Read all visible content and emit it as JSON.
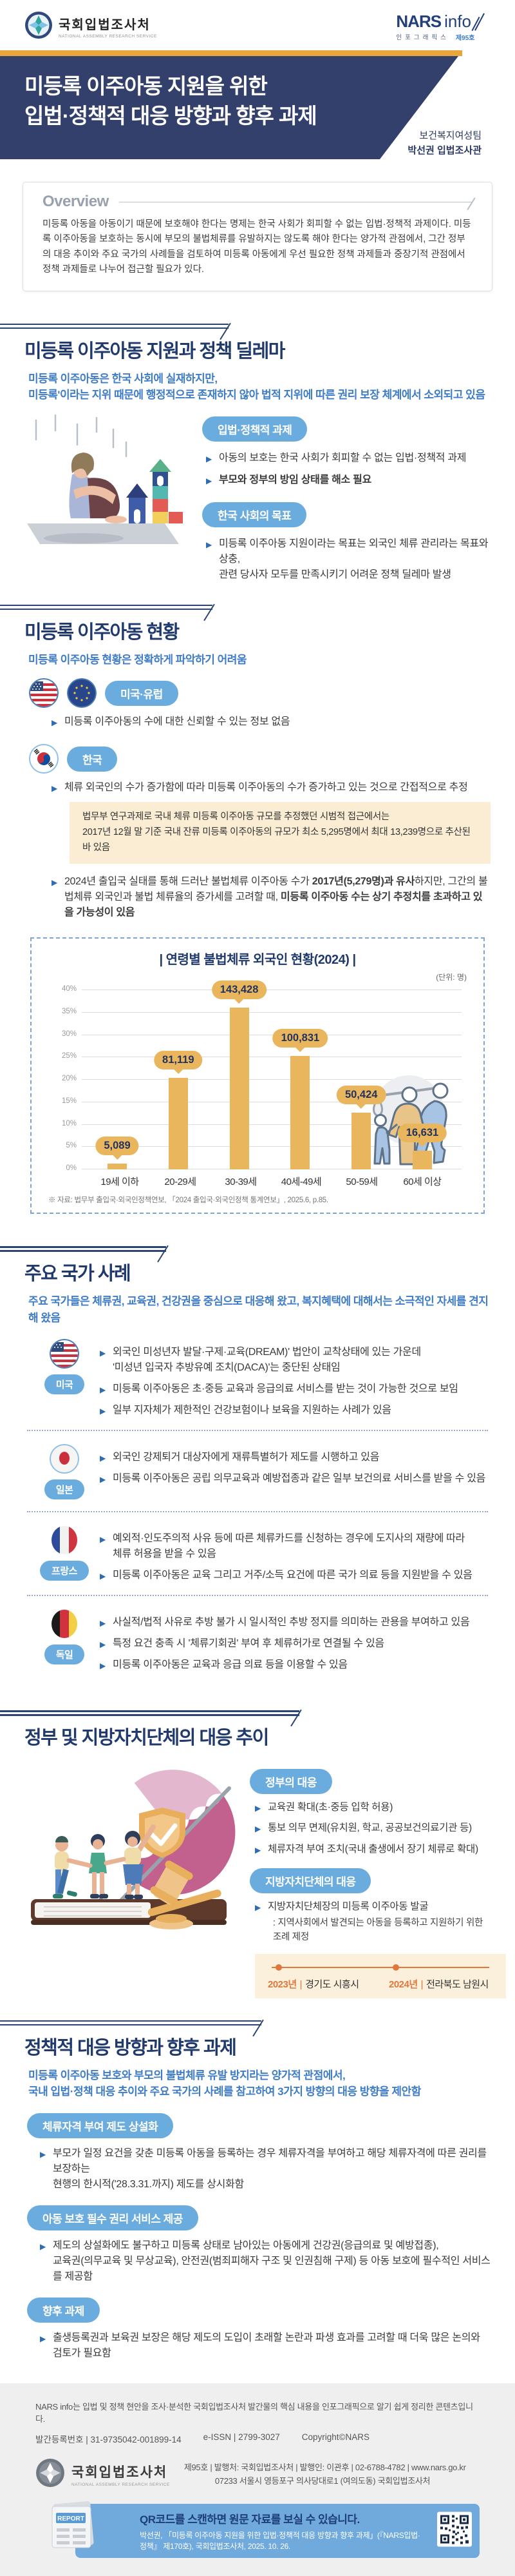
{
  "colors": {
    "navy": "#32406B",
    "heading": "#203A6E",
    "blue": "#3E7CC7",
    "pill-blue": "#6BACDF",
    "gold": "#E8A53C",
    "bar-gold": "#EAB65D",
    "orange": "#E0783C",
    "beige": "#FAEDD3",
    "timeline-beige": "#FBF0DC",
    "footer-bg": "#EFEFEF",
    "qrbar-blue": "#70A9DC",
    "bullet-blue": "#2E6CB4"
  },
  "header": {
    "org_name": "국회입법조사처",
    "org_name_en": "NATIONAL ASSEMBLY RESEARCH SERVICE",
    "brand_bold": "NARS",
    "brand_light": "info",
    "brand_sub": "인포그래픽스",
    "issue_no": "제95호",
    "title_line1": "미등록 이주아동 지원을 위한",
    "title_line2": "입법·정책적 대응 방향과 향후 과제",
    "team": "보건복지여성팀",
    "author": "박선권 입법조사관"
  },
  "overview": {
    "label": "Overview",
    "body": "미등록 아동을 아동이기 때문에 보호해야 한다는 명제는 한국 사회가 회피할 수 없는 입법·정책적 과제이다. 미등록 이주아동을 보호하는 동시에 부모의 불법체류를 유발하지는 않도록 해야 한다는 양가적 관점에서, 그간 정부의 대응 추이와 주요 국가의 사례들을 검토하여 미등록 아동에게 우선 필요한 정책 과제들과 중장기적 관점에서 정책 과제들로 나누어 접근할 필요가 있다."
  },
  "section1": {
    "heading": "미등록 이주아동 지원과 정책 딜레마",
    "intro": "미등록 이주아동은 한국 사회에 실재하지만,\n미등록'이라는 지위 때문에 행정적으로 존재하지 않아 법적 지위에 따른 권리 보장 체계에서 소외되고 있음",
    "pill1": "입법·정책적 과제",
    "pill1_bullet1": "아동의 보호는 한국 사회가 회피할 수 없는 입법·정책적 과제",
    "pill1_bullet2": "부모와 정부의 방임 상태를 해소 필요",
    "pill2": "한국 사회의 목표",
    "pill2_bullet": "미등록 이주아동 지원이라는 목표는 외국인 체류 관리라는 목표와 상충,\n관련 당사자 모두를 만족시키기 어려운 정책 딜레마 발생"
  },
  "section2": {
    "heading": "미등록 이주아동 현황",
    "intro": "미등록 이주아동 현황은 정확하게 파악하기 어려움",
    "us_eu_label": "미국·유럽",
    "us_eu_bullet": "미등록 이주아동의 수에 대한 신뢰할 수 있는 정보 없음",
    "kr_label": "한국",
    "kr_bullet1": "체류 외국인의 수가 증가함에 따라 미등록 이주아동의 수가 증가하고 있는 것으로 간접적으로 추정",
    "kr_note": "법무부 연구과제로 국내 체류 미등록 이주아동 규모를 추정했던 시범적 접근에서는\n2017년 12월 말 기준 국내 잔류 미등록 이주아동의 규모가 최소 5,295명에서 최대 13,239명으로 추산된 바 있음",
    "kr_bullet2_seg1": "2024년 출입국 실태를 통해 드러난 불법체류 이주아동 수가 ",
    "kr_bullet2_seg2": "2017년(5,279명)과 유사",
    "kr_bullet2_seg3": "하지만, 그간의 불법체류 외국인과 불법 체류율의 증가세를 고려할 때, ",
    "kr_bullet2_seg4": "미등록 이주아동 수는 상기 추정치를 초과하고 있을 가능성이 있음"
  },
  "chart_data": {
    "type": "bar",
    "title": "| 연령별 불법체류 외국인 현황(2024) |",
    "unit_label": "(단위: 명)",
    "categories": [
      "19세 이하",
      "20-29세",
      "30-39세",
      "40세-49세",
      "50-59세",
      "60세 이상"
    ],
    "values": [
      5089,
      81119,
      143428,
      100831,
      50424,
      16631
    ],
    "value_labels": [
      "5,089",
      "81,119",
      "143,428",
      "100,831",
      "50,424",
      "16,631"
    ],
    "percent": [
      1.3,
      20.4,
      36.1,
      25.4,
      12.7,
      4.2
    ],
    "ylabel_ticks": [
      "0%",
      "5%",
      "10%",
      "15%",
      "20%",
      "25%",
      "30%",
      "35%",
      "40%"
    ],
    "ylim": [
      0,
      40
    ],
    "grid": true,
    "legend": "none",
    "source": "※ 자료: 법무부 출입국·외국인정책연보, 「2024 출입국·외국인정책 통계연보」, 2025.6, p.85."
  },
  "section3": {
    "heading": "주요 국가 사례",
    "intro": "주요 국가들은 체류권, 교육권, 건강권을 중심으로 대응해 왔고, 복지혜택에 대해서는 소극적인 자세를 견지해 왔음",
    "countries": [
      {
        "name": "미국",
        "bullets": [
          "외국인 미성년자 발달·구제·교육(DREAM)' 법안이 교착상태에 있는 가운데\n'미성년 입국자 추방유예 조치(DACA)'는 중단된 상태임",
          "미등록 이주아동은 초·중등 교육과 응급의료 서비스를 받는 것이 가능한 것으로 보임",
          "일부 지자체가 제한적인 건강보험이나 보육을 지원하는 사례가 있음"
        ]
      },
      {
        "name": "일본",
        "bullets": [
          "외국인 강제퇴거 대상자에게 재류특별허가 제도를 시행하고 있음",
          "미등록 이주아동은 공립 의무교육과 예방접종과 같은 일부 보건의료 서비스를 받을 수 있음"
        ]
      },
      {
        "name": "프랑스",
        "bullets": [
          "예외적·인도주의적 사유 등에 따른 체류카드를 신청하는 경우에 도지사의 재량에 따라\n체류 허용을 받을 수 있음",
          "미등록 이주아동은 교육 그리고 거주/소득 요건에 따른 국가 의료 등을 지원받을 수 있음"
        ]
      },
      {
        "name": "독일",
        "bullets": [
          "사실적/법적 사유로 추방 불가 시 일시적인 추방 정지를 의미하는 관용을 부여하고 있음",
          "특정 요건 충족 시 '체류기회권' 부여 후 체류허가로 연결될 수 있음",
          "미등록 이주아동은 교육과 응급 의료 등을 이용할 수 있음"
        ]
      }
    ]
  },
  "section4": {
    "heading": "정부 및 지방자치단체의 대응 추이",
    "gov_pill": "정부의 대응",
    "gov_bullets": [
      "교육권 확대(초·중등 입학 허용)",
      "통보 의무 면제(유치원, 학교, 공공보건의료기관 등)",
      "체류자격 부여 조치(국내 출생에서 장기 체류로 확대)"
    ],
    "local_pill": "지방자치단체의 대응",
    "local_bullet": "지방자치단체장의 미등록 이주아동 발굴",
    "local_note": ": 지역사회에서 발견되는 아동을 등록하고 지원하기 위한\n조례 제정",
    "timeline": [
      {
        "year": "2023년",
        "sep": "|",
        "region": "경기도 시흥시"
      },
      {
        "year": "2024년",
        "sep": "|",
        "region": "전라북도 남원시"
      }
    ]
  },
  "section5": {
    "heading": "정책적 대응 방향과 향후 과제",
    "intro": "미등록 이주아동 보호와 부모의 불법체류 유발 방지라는 양가적 관점에서,\n국내 입법·정책 대응 추이와 주요 국가의 사례를 참고하여 3가지 방향의 대응 방향을 제안함",
    "items": [
      {
        "pill": "체류자격 부여 제도 상설화",
        "body": "부모가 일정 요건을 갖춘 미등록 아동을 등록하는 경우 체류자격을 부여하고 해당 체류자격에 따른 권리를 보장하는\n현행의 한시적('28.3.31.까지) 제도를 상시화함"
      },
      {
        "pill": "아동 보호 필수 권리 서비스 제공",
        "body": "제도의 상설화에도 불구하고 미등록 상태로 남아있는 아동에게 건강권(응급의료 및 예방접종),\n교육권(의무교육 및 무상교육), 안전권(범죄피해자 구조 및 인권침해 구제) 등 아동 보호에 필수적인 서비스를 제공함"
      },
      {
        "pill": "향후 과제",
        "body": "출생등록권과 보육권 보장은 해당 제도의 도입이 초래할 논란과 파생 효과를 고려할 때 더욱 많은 논의와 검토가 필요함"
      }
    ]
  },
  "footer": {
    "about": "NARS info는 입법 및 정책 현안을 조사·분석한 국회입법조사처 발간물의 핵심 내용을 인포그래픽으로 알기 쉽게 정리한 콘텐츠입니다.",
    "reg": "발간등록번호 | 31-9735042-001899-14",
    "issn": "e-ISSN | 2799-3027",
    "copyright": "Copyright©NARS",
    "org_name": "국회입법조사처",
    "org_name_en": "NATIONAL ASSEMBLY RESEARCH SERVICE",
    "pub_line1_pre": "제95호  |  발행처: 국회입법조사처  |  발행인: 이관후  |  02-6788-4782  |  ",
    "pub_url": "www.nars.go.kr",
    "pub_line2": "07233 서울시 영등포구 의사당대로1 (여의도동) 국회입법조사처",
    "report_label": "REPORT",
    "qr_title": "QR코드를 스캔하면 원문 자료를 보실 수 있습니다.",
    "qr_citation": "박선권, 「미등록 이주아동 지원을 위한 입법·정책적 대응 방향과 향후 과제」(『NARS입법·정책』 제170호), 국회입법조사처, 2025. 10. 26."
  }
}
